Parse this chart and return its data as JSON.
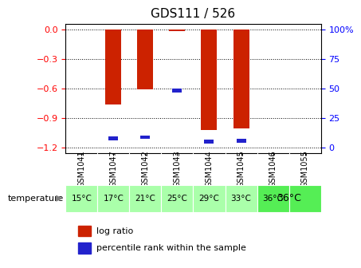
{
  "title": "GDS111 / 526",
  "samples": [
    "GSM1041",
    "GSM1047",
    "GSM1042",
    "GSM1043",
    "GSM1044",
    "GSM1045",
    "GSM1046",
    "GSM1055"
  ],
  "temperatures": [
    "15°C",
    "17°C",
    "21°C",
    "25°C",
    "29°C",
    "33°C",
    "36°C",
    "36°C"
  ],
  "temp_groups": [
    {
      "label": "15°C",
      "cols": [
        0
      ],
      "color": "#ccffcc"
    },
    {
      "label": "17°C",
      "cols": [
        1
      ],
      "color": "#ccffcc"
    },
    {
      "label": "21°C",
      "cols": [
        2
      ],
      "color": "#ccffcc"
    },
    {
      "label": "25°C",
      "cols": [
        3
      ],
      "color": "#ccffcc"
    },
    {
      "label": "29°C",
      "cols": [
        4
      ],
      "color": "#ccffcc"
    },
    {
      "label": "33°C",
      "cols": [
        5
      ],
      "color": "#ccffcc"
    },
    {
      "label": "36°C",
      "cols": [
        6,
        7
      ],
      "color": "#66ee66"
    }
  ],
  "log_ratio": [
    0.0,
    -0.76,
    -0.61,
    -0.02,
    -1.02,
    -1.0,
    0.0,
    0.0
  ],
  "percentile_rank": [
    0,
    8,
    9,
    48,
    5,
    6,
    0,
    0
  ],
  "ylim": [
    -1.25,
    0.05
  ],
  "yticks": [
    0,
    -0.3,
    -0.6,
    -0.9,
    -1.2
  ],
  "right_yticks": [
    100,
    75,
    50,
    25,
    0
  ],
  "bar_color": "#cc2200",
  "pct_color": "#2222cc",
  "bg_color": "#ffffff",
  "plot_bg": "#ffffff",
  "grid_color": "#000000",
  "sample_bg": "#cccccc",
  "temp_bg_light": "#aaffaa",
  "temp_bg_dark": "#44dd44",
  "bar_width": 0.5
}
